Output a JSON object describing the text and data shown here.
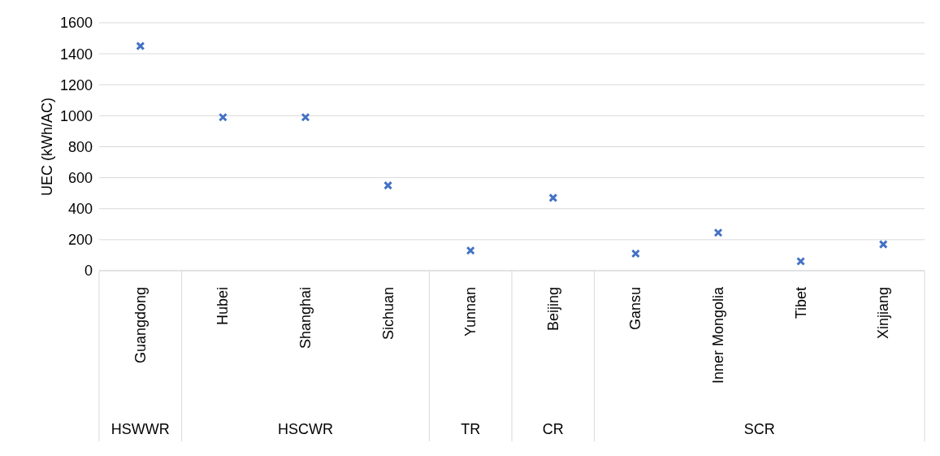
{
  "chart_data": {
    "type": "scatter",
    "ylabel": "UEC (kWh/AC)",
    "categories": [
      "Guangdong",
      "Hubei",
      "Shanghai",
      "Sichuan",
      "Yunnan",
      "Beijing",
      "Gansu",
      "Inner Mongolia",
      "Tibet",
      "Xinjiang"
    ],
    "values": [
      1450,
      990,
      990,
      550,
      130,
      470,
      110,
      245,
      60,
      170
    ],
    "color": "#4472c4",
    "marker": "cross",
    "ylim": [
      0,
      1600
    ],
    "yticks": [
      0,
      200,
      400,
      600,
      800,
      1000,
      1200,
      1400,
      1600
    ],
    "grid": "y",
    "annotations": [
      "HSWWR",
      "HSCWR",
      "TR",
      "CR",
      "SCR"
    ]
  }
}
